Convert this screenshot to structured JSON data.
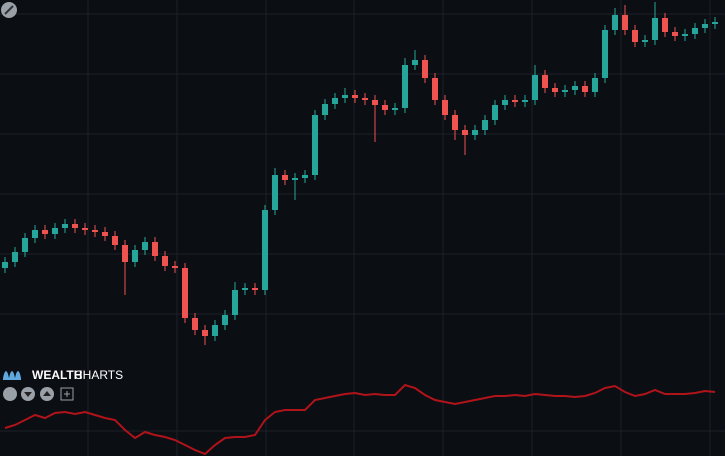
{
  "chart_data": {
    "type": "candlestick",
    "brand_bold": "WEALTH",
    "brand_light": "CHARTS",
    "x": [
      0,
      1,
      2,
      3,
      4,
      5,
      6,
      7,
      8,
      9,
      10,
      11,
      12,
      13,
      14,
      15,
      16,
      17,
      18,
      19,
      20,
      21,
      22,
      23,
      24,
      25,
      26,
      27,
      28,
      29,
      30,
      31,
      32,
      33,
      34,
      35,
      36,
      37,
      38,
      39,
      40,
      41,
      42,
      43,
      44,
      45,
      46,
      47,
      48,
      49,
      50,
      51,
      52,
      53,
      54,
      55,
      56,
      57,
      58,
      59,
      60,
      61,
      62,
      63,
      64,
      65,
      66,
      67,
      68,
      69,
      70,
      71
    ],
    "open": [
      92,
      98,
      108,
      122,
      130,
      126,
      132,
      136,
      132,
      130,
      128,
      124,
      115,
      98,
      110,
      118,
      104,
      94,
      92,
      42,
      30,
      24,
      35,
      45,
      70,
      72,
      70,
      150,
      185,
      180,
      182,
      185,
      245,
      256,
      262,
      265,
      262,
      260,
      255,
      250,
      252,
      295,
      300,
      282,
      260,
      245,
      230,
      225,
      230,
      240,
      255,
      260,
      258,
      260,
      285,
      272,
      268,
      270,
      274,
      268,
      282,
      330,
      345,
      330,
      318,
      320,
      342,
      328,
      324,
      326,
      332,
      336
    ],
    "high": [
      103,
      113,
      127,
      135,
      135,
      137,
      141,
      141,
      137,
      135,
      133,
      129,
      120,
      115,
      123,
      123,
      109,
      99,
      97,
      47,
      35,
      40,
      50,
      78,
      77,
      77,
      155,
      192,
      190,
      187,
      190,
      250,
      261,
      267,
      272,
      270,
      267,
      265,
      260,
      257,
      302,
      310,
      305,
      287,
      265,
      250,
      235,
      235,
      245,
      260,
      265,
      265,
      265,
      295,
      290,
      277,
      275,
      279,
      279,
      287,
      335,
      352,
      355,
      335,
      325,
      358,
      347,
      333,
      331,
      337,
      341,
      343
    ],
    "low": [
      87,
      93,
      103,
      117,
      121,
      121,
      127,
      127,
      125,
      123,
      119,
      110,
      65,
      93,
      105,
      99,
      89,
      87,
      37,
      25,
      15,
      19,
      30,
      40,
      65,
      65,
      65,
      145,
      175,
      160,
      177,
      180,
      240,
      251,
      257,
      257,
      255,
      218,
      245,
      245,
      247,
      290,
      277,
      255,
      240,
      220,
      205,
      220,
      225,
      235,
      250,
      253,
      253,
      255,
      267,
      263,
      263,
      265,
      263,
      263,
      277,
      325,
      325,
      313,
      313,
      315,
      323,
      319,
      319,
      321,
      327,
      331
    ],
    "close": [
      98,
      108,
      122,
      130,
      126,
      132,
      136,
      132,
      130,
      128,
      124,
      115,
      98,
      110,
      118,
      104,
      94,
      92,
      42,
      30,
      24,
      35,
      45,
      70,
      72,
      70,
      150,
      185,
      180,
      182,
      185,
      245,
      256,
      262,
      265,
      262,
      260,
      255,
      250,
      252,
      295,
      300,
      282,
      260,
      245,
      230,
      225,
      230,
      240,
      255,
      260,
      258,
      260,
      285,
      272,
      268,
      270,
      274,
      268,
      282,
      330,
      345,
      330,
      318,
      320,
      342,
      328,
      324,
      326,
      332,
      336,
      338
    ],
    "up_color": "#26a69a",
    "down_color": "#ef5350",
    "xlim": [
      -0.5,
      72
    ],
    "xticks": [
      8.3,
      17.2,
      26.1,
      34.9,
      43.8,
      52.7,
      61.6,
      70.5
    ],
    "ylim": [
      0,
      360
    ],
    "yticks": [
      346,
      286,
      226,
      166,
      106,
      46
    ],
    "indicator": {
      "axis": "y2",
      "color": "#b0141a",
      "values": [
        28,
        31,
        36,
        41,
        38,
        43,
        44,
        42,
        44,
        41,
        38,
        36,
        26,
        18,
        24,
        21,
        19,
        16,
        11,
        6,
        2,
        11,
        18,
        19,
        19,
        21,
        36,
        44,
        46,
        46,
        46,
        56,
        58,
        60,
        62,
        63,
        61,
        62,
        61,
        61,
        71,
        68,
        61,
        56,
        54,
        52,
        54,
        56,
        58,
        60,
        60,
        61,
        60,
        62,
        61,
        60,
        60,
        59,
        60,
        63,
        68,
        70,
        64,
        60,
        62,
        66,
        62,
        62,
        62,
        63,
        65,
        64
      ]
    },
    "y2lim": [
      0,
      80
    ],
    "y2ticks": [
      25
    ],
    "grid": true
  }
}
